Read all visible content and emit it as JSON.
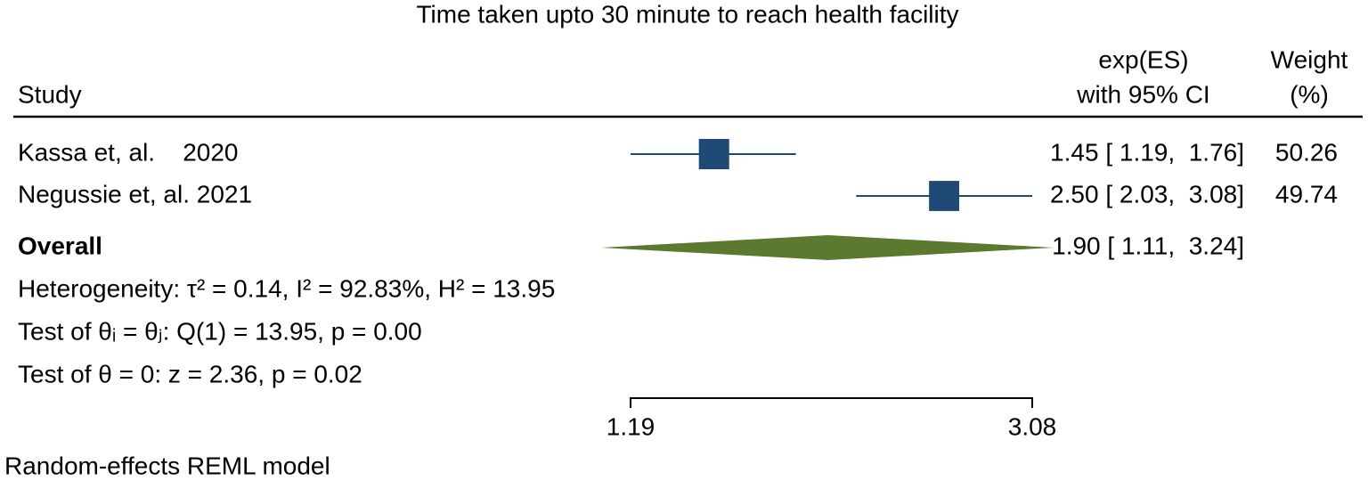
{
  "chart_data": {
    "type": "forest",
    "title": "Time taken upto 30 minute to reach health facility",
    "headers": {
      "study": "Study",
      "es_1": "exp(ES)",
      "es_2": "with 95% CI",
      "weight_1": "Weight",
      "weight_2": "(%)"
    },
    "studies": [
      {
        "name": "Kassa et, al.    2020",
        "es": 1.45,
        "lo": 1.19,
        "hi": 1.76,
        "ci_label": "1.45 [ 1.19,  1.76]",
        "weight": 50.26
      },
      {
        "name": "Negussie et, al. 2021",
        "es": 2.5,
        "lo": 2.03,
        "hi": 3.08,
        "ci_label": "2.50 [ 2.03,  3.08]",
        "weight": 49.74
      }
    ],
    "overall": {
      "name": "Overall",
      "es": 1.9,
      "lo": 1.11,
      "hi": 3.24,
      "ci_label": "1.90 [ 1.11,  3.24]"
    },
    "notes": [
      "Heterogeneity: τ² = 0.14, I² = 92.83%, H² = 13.95",
      "Test of θᵢ = θⱼ: Q(1) = 13.95, p = 0.00",
      "Test of θ = 0: z = 2.36, p = 0.02"
    ],
    "xlim": [
      1.19,
      3.08
    ],
    "xticks": [
      1.19,
      3.08
    ],
    "log_x": true,
    "marker_color": "#1f4a76",
    "overall_color": "#5b7a2f",
    "footnote": "Random-effects REML model"
  }
}
